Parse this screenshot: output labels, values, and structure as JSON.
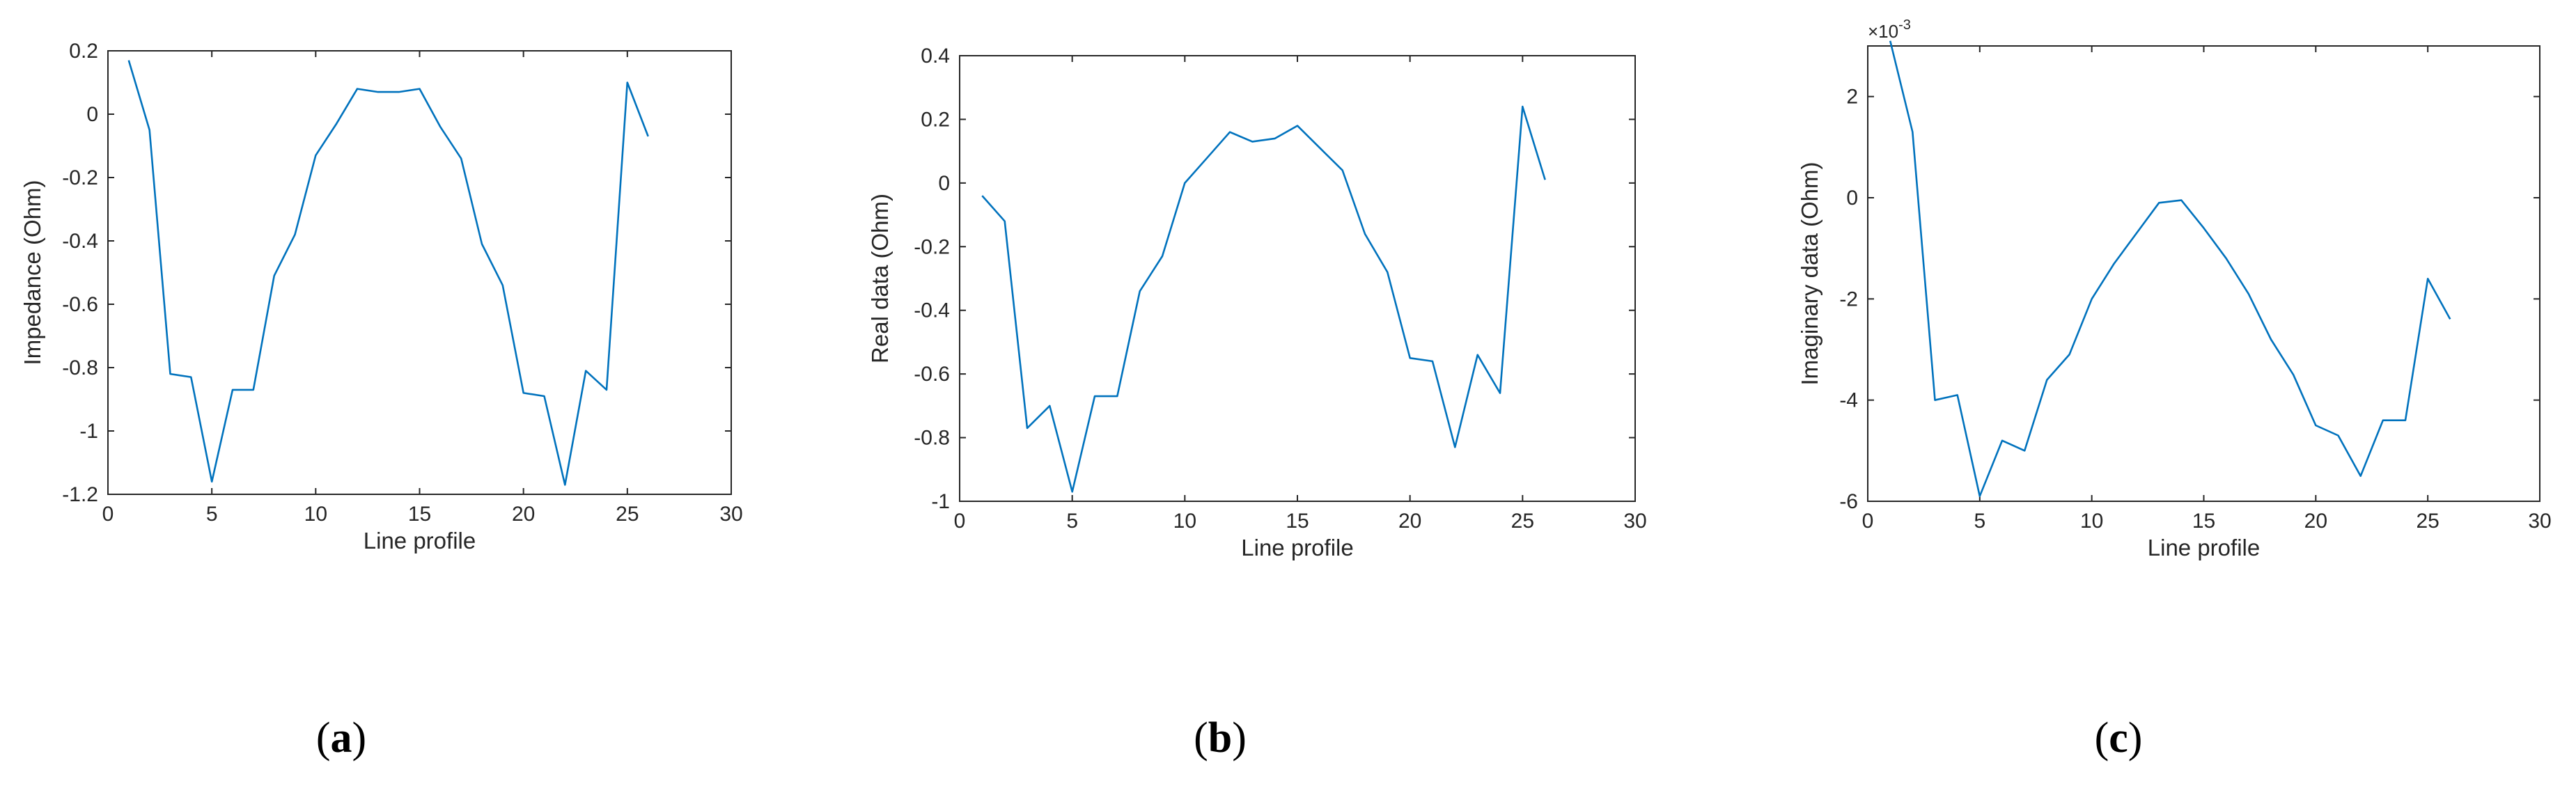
{
  "chart_data": [
    {
      "type": "line",
      "panel_label": "(a)",
      "panel_letter": "a",
      "xlabel": "Line profile",
      "ylabel": "Impedance (Ohm)",
      "xlim": [
        0,
        30
      ],
      "ylim": [
        -1.2,
        0.2
      ],
      "xticks": [
        0,
        5,
        10,
        15,
        20,
        25,
        30
      ],
      "yticks": [
        -1.2,
        -1,
        -0.8,
        -0.6,
        -0.4,
        -0.2,
        0,
        0.2
      ],
      "xtick_labels": [
        "0",
        "5",
        "10",
        "15",
        "20",
        "25",
        "30"
      ],
      "ytick_labels": [
        "-1.2",
        "-1",
        "-0.8",
        "-0.6",
        "-0.4",
        "-0.2",
        "0",
        "0.2"
      ],
      "exponent_label": "",
      "grid": false,
      "line_color": "#0072bd",
      "x": [
        1,
        2,
        3,
        4,
        5,
        6,
        7,
        8,
        9,
        10,
        11,
        12,
        13,
        14,
        15,
        16,
        17,
        18,
        19,
        20,
        21,
        22,
        23,
        24,
        25,
        26
      ],
      "y": [
        0.17,
        -0.05,
        -0.82,
        -0.83,
        -1.16,
        -0.87,
        -0.87,
        -0.51,
        -0.38,
        -0.13,
        -0.03,
        0.08,
        0.07,
        0.07,
        0.08,
        -0.04,
        -0.14,
        -0.41,
        -0.54,
        -0.88,
        -0.89,
        -1.17,
        -0.81,
        -0.87,
        0.1,
        -0.07
      ]
    },
    {
      "type": "line",
      "panel_label": "(b)",
      "panel_letter": "b",
      "xlabel": "Line profile",
      "ylabel": "Real data (Ohm)",
      "xlim": [
        0,
        30
      ],
      "ylim": [
        -1,
        0.4
      ],
      "xticks": [
        0,
        5,
        10,
        15,
        20,
        25,
        30
      ],
      "yticks": [
        -1,
        -0.8,
        -0.6,
        -0.4,
        -0.2,
        0,
        0.2,
        0.4
      ],
      "xtick_labels": [
        "0",
        "5",
        "10",
        "15",
        "20",
        "25",
        "30"
      ],
      "ytick_labels": [
        "-1",
        "-0.8",
        "-0.6",
        "-0.4",
        "-0.2",
        "0",
        "0.2",
        "0.4"
      ],
      "exponent_label": "",
      "grid": false,
      "line_color": "#0072bd",
      "x": [
        1,
        2,
        3,
        4,
        5,
        6,
        7,
        8,
        9,
        10,
        11,
        12,
        13,
        14,
        15,
        16,
        17,
        18,
        19,
        20,
        21,
        22,
        23,
        24,
        25,
        26
      ],
      "y": [
        -0.04,
        -0.12,
        -0.77,
        -0.7,
        -0.97,
        -0.67,
        -0.67,
        -0.34,
        -0.23,
        0.0,
        0.08,
        0.16,
        0.13,
        0.14,
        0.18,
        0.11,
        0.04,
        -0.16,
        -0.28,
        -0.55,
        -0.56,
        -0.83,
        -0.54,
        -0.66,
        0.24,
        0.01
      ]
    },
    {
      "type": "line",
      "panel_label": "(c)",
      "panel_letter": "c",
      "xlabel": "Line profile",
      "ylabel": "Imaginary data (Ohm)",
      "xlim": [
        0,
        30
      ],
      "ylim": [
        -6,
        3
      ],
      "xticks": [
        0,
        5,
        10,
        15,
        20,
        25,
        30
      ],
      "yticks": [
        -6,
        -4,
        -2,
        0,
        2
      ],
      "xtick_labels": [
        "0",
        "5",
        "10",
        "15",
        "20",
        "25",
        "30"
      ],
      "ytick_labels": [
        "-6",
        "-4",
        "-2",
        "0",
        "2"
      ],
      "exponent_label": "×10",
      "exponent_value": "-3",
      "grid": false,
      "line_color": "#0072bd",
      "x": [
        1,
        2,
        3,
        4,
        5,
        6,
        7,
        8,
        9,
        10,
        11,
        12,
        13,
        14,
        15,
        16,
        17,
        18,
        19,
        20,
        21,
        22,
        23,
        24,
        25,
        26
      ],
      "y": [
        3.1,
        1.3,
        -4.0,
        -3.9,
        -5.9,
        -4.8,
        -5.0,
        -3.6,
        -3.1,
        -2.0,
        -1.3,
        -0.7,
        -0.1,
        -0.05,
        -0.6,
        -1.2,
        -1.9,
        -2.8,
        -3.5,
        -4.5,
        -4.7,
        -5.5,
        -4.4,
        -4.4,
        -1.6,
        -2.4
      ]
    }
  ]
}
